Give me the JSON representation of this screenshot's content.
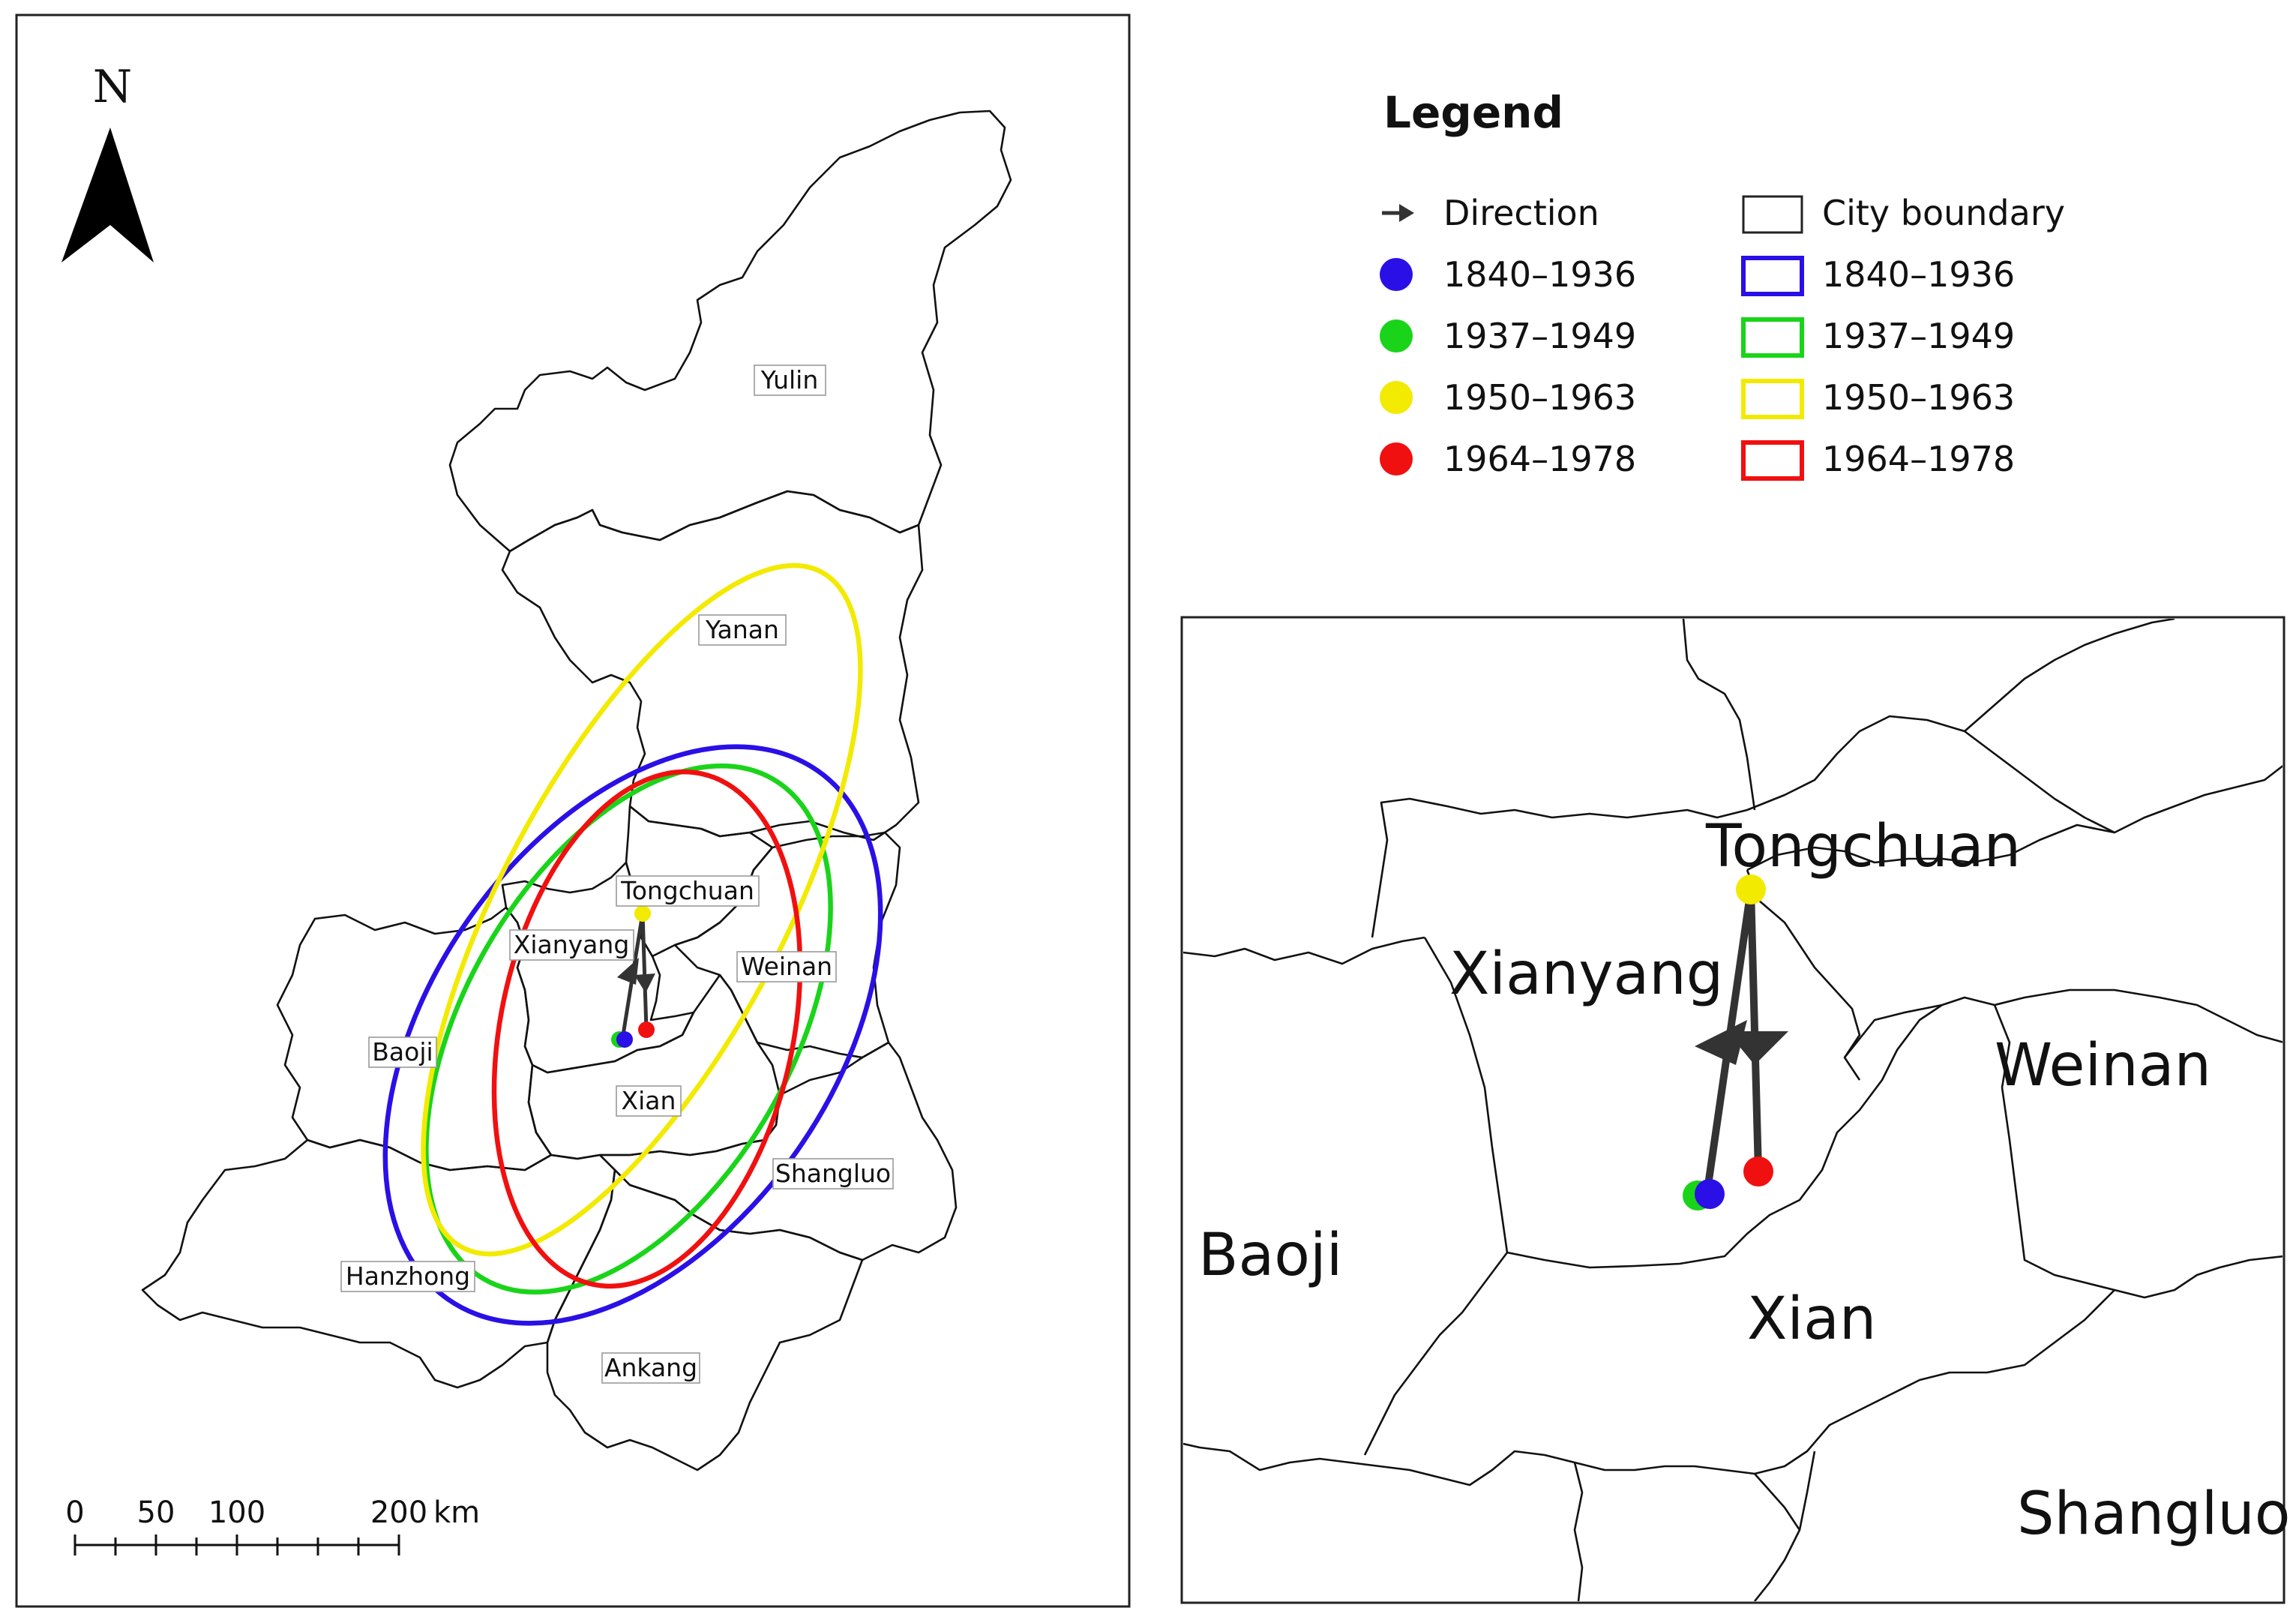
{
  "north_label": "N",
  "scale_bar": {
    "ticks": [
      "0",
      "50",
      "100",
      "200"
    ],
    "unit": "km"
  },
  "cities": [
    {
      "name": "Yulin"
    },
    {
      "name": "Yanan"
    },
    {
      "name": "Tongchuan"
    },
    {
      "name": "Xianyang"
    },
    {
      "name": "Weinan"
    },
    {
      "name": "Baoji"
    },
    {
      "name": "Xian"
    },
    {
      "name": "Shangluo"
    },
    {
      "name": "Hanzhong"
    },
    {
      "name": "Ankang"
    }
  ],
  "inset_labels": [
    "Tongchuan",
    "Xianyang",
    "Weinan",
    "Baoji",
    "Xian",
    "Shangluo"
  ],
  "legend": {
    "title": "Legend",
    "points_column": [
      {
        "label": "Direction",
        "symbol": "arrow"
      },
      {
        "label": "1840–1936",
        "color": "#2a10e6"
      },
      {
        "label": "1937–1949",
        "color": "#1ad41a"
      },
      {
        "label": "1950–1963",
        "color": "#f2ea00"
      },
      {
        "label": "1964–1978",
        "color": "#f01010"
      }
    ],
    "ellipse_column": [
      {
        "label": "City boundary",
        "color": "#222222"
      },
      {
        "label": "1840–1936",
        "color": "#2a10e6"
      },
      {
        "label": "1937–1949",
        "color": "#1ad41a"
      },
      {
        "label": "1950–1963",
        "color": "#f2ea00"
      },
      {
        "label": "1964–1978",
        "color": "#f01010"
      }
    ]
  }
}
